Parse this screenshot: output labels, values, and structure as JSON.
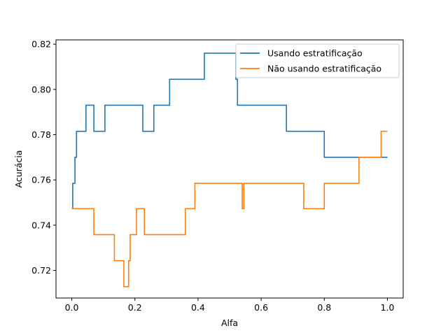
{
  "chart_data": {
    "type": "line",
    "title": "",
    "xlabel": "Alfa",
    "ylabel": "Acurácia",
    "xlim": [
      -0.05,
      1.05
    ],
    "ylim": [
      0.7078,
      0.8219
    ],
    "xticks": [
      0.0,
      0.2,
      0.4,
      0.6,
      0.8,
      1.0
    ],
    "xtick_labels": [
      "0.0",
      "0.2",
      "0.4",
      "0.6",
      "0.8",
      "1.0"
    ],
    "yticks": [
      0.72,
      0.74,
      0.76,
      0.78,
      0.8,
      0.82
    ],
    "ytick_labels": [
      "0.72",
      "0.74",
      "0.76",
      "0.78",
      "0.80",
      "0.82"
    ],
    "grid": false,
    "legend_position": "top-right",
    "series": [
      {
        "name": "Usando estratificação",
        "color": "#1f77b4",
        "x": [
          0.0,
          0.003,
          0.003,
          0.01,
          0.01,
          0.015,
          0.015,
          0.045,
          0.045,
          0.07,
          0.07,
          0.105,
          0.105,
          0.225,
          0.225,
          0.26,
          0.26,
          0.31,
          0.31,
          0.42,
          0.42,
          0.52,
          0.52,
          0.525,
          0.525,
          0.68,
          0.68,
          0.8,
          0.8,
          1.0
        ],
        "y": [
          0.7473,
          0.7473,
          0.7585,
          0.7585,
          0.77,
          0.77,
          0.7815,
          0.7815,
          0.793,
          0.793,
          0.7815,
          0.7815,
          0.793,
          0.793,
          0.7815,
          0.7815,
          0.793,
          0.793,
          0.8045,
          0.8045,
          0.816,
          0.816,
          0.8045,
          0.8045,
          0.793,
          0.793,
          0.7815,
          0.7815,
          0.77,
          0.77
        ]
      },
      {
        "name": "Não usando estratificação",
        "color": "#ff7f0e",
        "x": [
          0.0,
          0.07,
          0.07,
          0.135,
          0.135,
          0.165,
          0.165,
          0.18,
          0.18,
          0.185,
          0.185,
          0.205,
          0.205,
          0.23,
          0.23,
          0.36,
          0.36,
          0.39,
          0.39,
          0.54,
          0.54,
          0.545,
          0.545,
          0.735,
          0.735,
          0.8,
          0.8,
          0.91,
          0.91,
          0.98,
          0.98,
          1.0
        ],
        "y": [
          0.7473,
          0.7473,
          0.7358,
          0.7358,
          0.7243,
          0.7243,
          0.7128,
          0.7128,
          0.7243,
          0.7243,
          0.7358,
          0.7358,
          0.7473,
          0.7473,
          0.7358,
          0.7358,
          0.7473,
          0.7473,
          0.7585,
          0.7585,
          0.7473,
          0.7473,
          0.7585,
          0.7585,
          0.7473,
          0.7473,
          0.7585,
          0.7585,
          0.77,
          0.77,
          0.7815,
          0.7815
        ]
      }
    ]
  }
}
